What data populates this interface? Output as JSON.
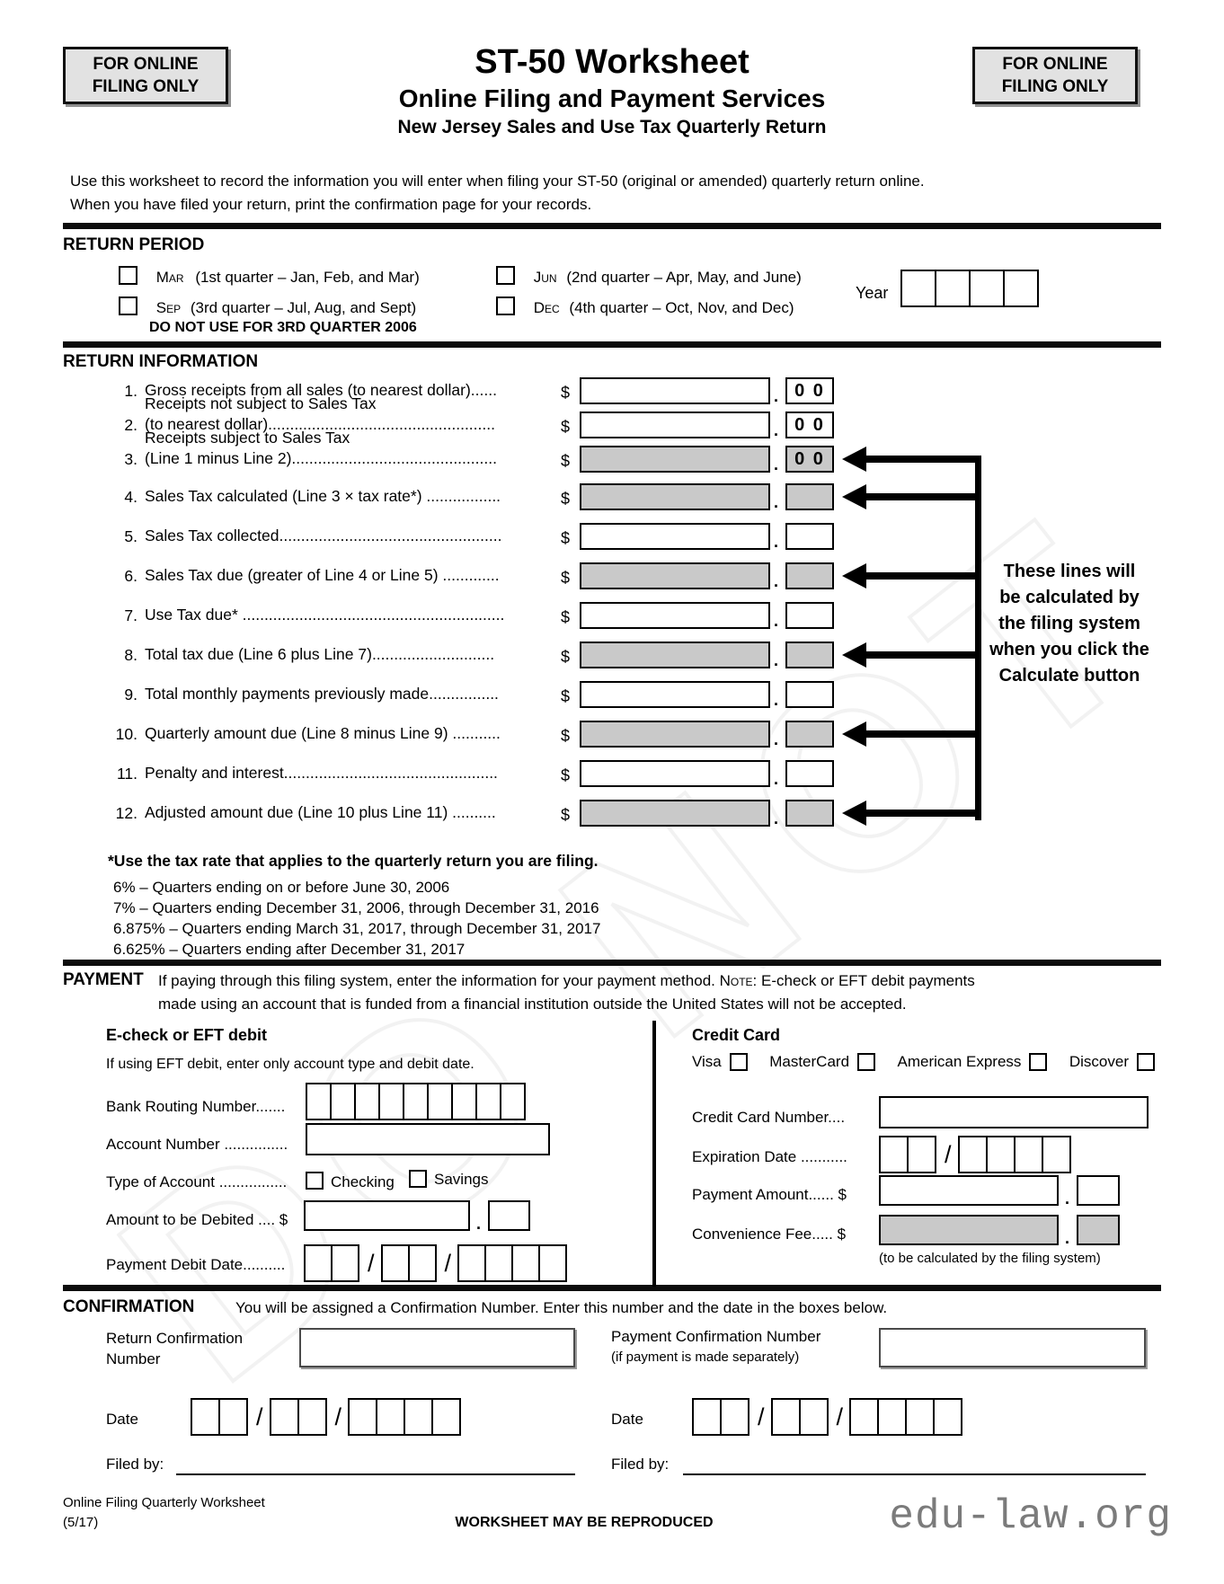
{
  "header": {
    "stamp_line1": "FOR ONLINE",
    "stamp_line2": "FILING ONLY",
    "title": "ST-50 Worksheet",
    "subtitle": "Online Filing and Payment Services",
    "subsubtitle": "New Jersey Sales and Use Tax Quarterly Return",
    "intro_line1": "Use this worksheet to record the information you will enter when filing your ST-50 (original or amended) quarterly return online.",
    "intro_line2": "When you have filed your return, print the confirmation page for your records."
  },
  "watermark": "DO NOT",
  "symbols": {
    "dollar": "$",
    "decimal": ".",
    "slash": "/"
  },
  "return_period": {
    "heading": "RETURN PERIOD",
    "quarters": [
      {
        "abbr": "Mar",
        "desc": "(1st quarter – Jan, Feb, and Mar)"
      },
      {
        "abbr": "Jun",
        "desc": "(2nd quarter – Apr, May, and June)"
      },
      {
        "abbr": "Sep",
        "desc": "(3rd quarter – Jul, Aug, and Sept)"
      },
      {
        "abbr": "Dec",
        "desc": "(4th quarter – Oct, Nov, and Dec)"
      }
    ],
    "warning": "DO NOT USE FOR 3RD QUARTER 2006",
    "year_label": "Year"
  },
  "return_information": {
    "heading": "RETURN INFORMATION",
    "lines": [
      {
        "num": "1.",
        "label": "Gross receipts from all sales (to nearest dollar)......",
        "label2": "",
        "shaded": false,
        "cents": "0 0",
        "arrow": false
      },
      {
        "num": "2.",
        "label": "Receipts not subject to Sales Tax",
        "label2": "(to nearest dollar)....................................................",
        "shaded": false,
        "cents": "0 0",
        "arrow": false
      },
      {
        "num": "3.",
        "label": "Receipts subject to Sales Tax",
        "label2": "(Line 1 minus Line 2)...............................................",
        "shaded": true,
        "cents": "0 0",
        "arrow": true
      },
      {
        "num": "4.",
        "label": "Sales Tax calculated (Line 3 × tax rate*) .................",
        "label2": "",
        "shaded": true,
        "cents": "",
        "arrow": true
      },
      {
        "num": "5.",
        "label": "Sales Tax collected...................................................",
        "label2": "",
        "shaded": false,
        "cents": "",
        "arrow": false
      },
      {
        "num": "6.",
        "label": "Sales Tax due (greater of Line 4 or Line 5) .............",
        "label2": "",
        "shaded": true,
        "cents": "",
        "arrow": true
      },
      {
        "num": "7.",
        "label": "Use Tax due* ............................................................",
        "label2": "",
        "shaded": false,
        "cents": "",
        "arrow": false
      },
      {
        "num": "8.",
        "label": "Total tax due (Line 6 plus Line 7)............................",
        "label2": "",
        "shaded": true,
        "cents": "",
        "arrow": true
      },
      {
        "num": "9.",
        "label": "Total monthly payments previously made................",
        "label2": "",
        "shaded": false,
        "cents": "",
        "arrow": false
      },
      {
        "num": "10.",
        "label": "Quarterly amount due (Line 8 minus Line 9) ...........",
        "label2": "",
        "shaded": true,
        "cents": "",
        "arrow": true
      },
      {
        "num": "11.",
        "label": "Penalty and interest.................................................",
        "label2": "",
        "shaded": false,
        "cents": "",
        "arrow": false
      },
      {
        "num": "12.",
        "label": "Adjusted amount due (Line 10 plus Line 11)  ..........",
        "label2": "",
        "shaded": true,
        "cents": "",
        "arrow": true
      }
    ],
    "callout_lines": [
      "These lines will",
      "be calculated by",
      "the filing system",
      "when you click the",
      "Calculate button"
    ],
    "footnote": "*Use the tax rate that applies to the quarterly return you are filing.",
    "rates": [
      "6% – Quarters ending on or before June 30, 2006",
      "7% – Quarters ending December 31, 2006, through December 31, 2016",
      "6.875% – Quarters ending March 31, 2017, through December 31, 2017",
      "6.625% – Quarters ending after December 31, 2017"
    ]
  },
  "payment": {
    "heading": "PAYMENT",
    "intro_1a": "If paying through this filing system, enter the information for your payment method. ",
    "note_label": "Note:",
    "intro_1b": "  E-check or EFT debit payments",
    "intro_2": "made using an account that is funded from a financial institution outside the United States will not be accepted.",
    "echeck": {
      "heading": "E-check or EFT debit",
      "hint": "If using EFT debit, enter only account type and debit date.",
      "routing_label": "Bank Routing Number.......",
      "account_label": "Account Number ...............",
      "type_label": "Type of Account ................",
      "checking_label": "Checking",
      "savings_label": "Savings",
      "amount_label": "Amount to be Debited .... $",
      "debit_date_label": "Payment Debit Date.........."
    },
    "credit": {
      "heading": "Credit Card",
      "brands": [
        "Visa",
        "MasterCard",
        "American Express",
        "Discover"
      ],
      "number_label": "Credit Card Number....",
      "exp_label": "Expiration Date ...........",
      "amount_label": "Payment Amount...... $",
      "fee_label": "Convenience Fee..... $",
      "fee_note": "(to be calculated by the filing system)"
    }
  },
  "confirmation": {
    "heading": "CONFIRMATION",
    "intro": "You will be assigned a Confirmation Number. Enter this number and the date in the boxes below.",
    "return_label_line1": "Return Confirmation",
    "return_label_line2": "Number",
    "payment_label_line1": "Payment Confirmation Number",
    "payment_label_line2": "(if payment is made separately)",
    "date_label": "Date",
    "filed_by_label": "Filed by:"
  },
  "footer": {
    "left_line1": "Online Filing Quarterly Worksheet",
    "left_line2": "(5/17)",
    "center": "WORKSHEET MAY BE REPRODUCED",
    "site": "edu-law.org"
  }
}
